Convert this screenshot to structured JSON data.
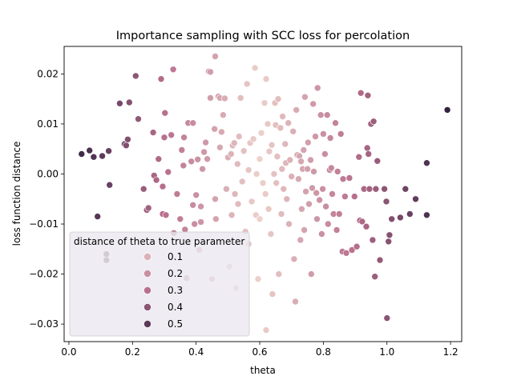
{
  "chart_data": {
    "type": "scatter",
    "title": "Importance sampling with SCC loss for percolation",
    "xlabel": "theta",
    "ylabel": "loss function distance",
    "xlim": [
      -0.015,
      1.235
    ],
    "ylim": [
      -0.0335,
      0.0255
    ],
    "xticks": [
      0.0,
      0.2,
      0.4,
      0.6,
      0.8,
      1.0,
      1.2
    ],
    "xtick_labels": [
      "0.0",
      "0.2",
      "0.4",
      "0.6",
      "0.8",
      "1.0",
      "1.2"
    ],
    "yticks": [
      0.02,
      0.01,
      0.0,
      -0.01,
      -0.02,
      -0.03
    ],
    "ytick_labels": [
      "0.02",
      "0.01",
      "0.00",
      "−0.01",
      "−0.02",
      "−0.03"
    ],
    "grid": false,
    "true_parameter": 0.6,
    "legend": {
      "title": "distance of theta to true parameter",
      "placement": "lower-left",
      "entries": [
        {
          "label": "0.1",
          "value": 0.1
        },
        {
          "label": "0.2",
          "value": 0.2
        },
        {
          "label": "0.3",
          "value": 0.3
        },
        {
          "label": "0.4",
          "value": 0.4
        },
        {
          "label": "0.5",
          "value": 0.5
        }
      ]
    },
    "colormap": {
      "low": "#ecd1cb",
      "mid": "#b86f8d",
      "high": "#2d1e3e",
      "domain": [
        0.0,
        0.6
      ]
    },
    "points": [
      [
        0.04,
        0.004
      ],
      [
        0.065,
        0.0047
      ],
      [
        0.078,
        0.0034
      ],
      [
        0.09,
        -0.0085
      ],
      [
        0.105,
        0.0036
      ],
      [
        0.118,
        -0.0172
      ],
      [
        0.118,
        -0.016
      ],
      [
        0.125,
        0.0046
      ],
      [
        0.128,
        -0.0022
      ],
      [
        0.16,
        0.0141
      ],
      [
        0.175,
        0.006
      ],
      [
        0.18,
        0.0057
      ],
      [
        0.185,
        0.0069
      ],
      [
        0.19,
        0.0143
      ],
      [
        0.21,
        0.0196
      ],
      [
        0.218,
        0.011
      ],
      [
        0.235,
        -0.003
      ],
      [
        0.245,
        -0.0072
      ],
      [
        0.25,
        -0.0068
      ],
      [
        0.265,
        0.0083
      ],
      [
        0.268,
        -0.0003
      ],
      [
        0.275,
        -0.0012
      ],
      [
        0.282,
        0.003
      ],
      [
        0.29,
        0.019
      ],
      [
        0.295,
        -0.0025
      ],
      [
        0.295,
        -0.008
      ],
      [
        0.3,
        0.0073
      ],
      [
        0.302,
        0.0122
      ],
      [
        0.305,
        -0.0082
      ],
      [
        0.312,
        0.0004
      ],
      [
        0.322,
        0.0078
      ],
      [
        0.328,
        0.0209
      ],
      [
        0.33,
        -0.0118
      ],
      [
        0.34,
        -0.004
      ],
      [
        0.35,
        -0.009
      ],
      [
        0.355,
        0.0048
      ],
      [
        0.36,
        0.0017
      ],
      [
        0.362,
        0.0073
      ],
      [
        0.365,
        -0.0111
      ],
      [
        0.37,
        -0.0208
      ],
      [
        0.375,
        0.0102
      ],
      [
        0.385,
        0.0025
      ],
      [
        0.39,
        0.0102
      ],
      [
        0.39,
        -0.0062
      ],
      [
        0.395,
        -0.01
      ],
      [
        0.4,
        -0.0042
      ],
      [
        0.405,
        0.0029
      ],
      [
        0.41,
        -0.0152
      ],
      [
        0.415,
        -0.0065
      ],
      [
        0.415,
        -0.0096
      ],
      [
        0.42,
        0.001
      ],
      [
        0.425,
        0.0044
      ],
      [
        0.43,
        0.0063
      ],
      [
        0.435,
        0.003
      ],
      [
        0.44,
        0.0205
      ],
      [
        0.445,
        0.0152
      ],
      [
        0.445,
        0.0204
      ],
      [
        0.45,
        -0.021
      ],
      [
        0.458,
        0.009
      ],
      [
        0.46,
        0.0235
      ],
      [
        0.46,
        -0.005
      ],
      [
        0.462,
        -0.009
      ],
      [
        0.47,
        0.0155
      ],
      [
        0.475,
        0.0053
      ],
      [
        0.475,
        0.0152
      ],
      [
        0.48,
        0.0084
      ],
      [
        0.485,
        0.0118
      ],
      [
        0.49,
        0.0151
      ],
      [
        0.495,
        -0.003
      ],
      [
        0.5,
        0.0033
      ],
      [
        0.505,
        -0.0185
      ],
      [
        0.51,
        0.004
      ],
      [
        0.512,
        -0.0082
      ],
      [
        0.515,
        0.0057
      ],
      [
        0.52,
        0.0062
      ],
      [
        0.522,
        -0.004
      ],
      [
        0.525,
        -0.0228
      ],
      [
        0.53,
        0.002
      ],
      [
        0.532,
        -0.006
      ],
      [
        0.535,
        0.0075
      ],
      [
        0.54,
        0.0152
      ],
      [
        0.545,
        -0.0015
      ],
      [
        0.55,
        0.0046
      ],
      [
        0.555,
        -0.0115
      ],
      [
        0.56,
        0.018
      ],
      [
        0.565,
        0.0008
      ],
      [
        0.565,
        -0.014
      ],
      [
        0.57,
        0.0062
      ],
      [
        0.575,
        -0.0055
      ],
      [
        0.58,
        0.007
      ],
      [
        0.585,
        0.0212
      ],
      [
        0.588,
        -0.0082
      ],
      [
        0.59,
        0.0
      ],
      [
        0.595,
        -0.021
      ],
      [
        0.6,
        0.003
      ],
      [
        0.6,
        -0.009
      ],
      [
        0.605,
        0.0082
      ],
      [
        0.61,
        -0.0018
      ],
      [
        0.615,
        0.0142
      ],
      [
        0.618,
        -0.004
      ],
      [
        0.62,
        0.019
      ],
      [
        0.62,
        -0.0312
      ],
      [
        0.625,
        0.01
      ],
      [
        0.628,
        -0.007
      ],
      [
        0.63,
        0.0045
      ],
      [
        0.635,
        -0.012
      ],
      [
        0.638,
        0.0058
      ],
      [
        0.64,
        -0.024
      ],
      [
        0.645,
        0.0
      ],
      [
        0.648,
        0.0142
      ],
      [
        0.65,
        0.0098
      ],
      [
        0.652,
        -0.0018
      ],
      [
        0.655,
        0.0035
      ],
      [
        0.658,
        0.015
      ],
      [
        0.66,
        -0.02
      ],
      [
        0.665,
        0.0092
      ],
      [
        0.668,
        -0.008
      ],
      [
        0.67,
        0.001
      ],
      [
        0.672,
        0.0115
      ],
      [
        0.675,
        -0.003
      ],
      [
        0.68,
        0.006
      ],
      [
        0.682,
        0.0022
      ],
      [
        0.685,
        -0.005
      ],
      [
        0.69,
        0.0102
      ],
      [
        0.692,
        -0.01
      ],
      [
        0.695,
        0.0028
      ],
      [
        0.7,
        -0.0005
      ],
      [
        0.705,
        0.0085
      ],
      [
        0.708,
        -0.017
      ],
      [
        0.712,
        -0.0255
      ],
      [
        0.715,
        0.0128
      ],
      [
        0.718,
        0.0038
      ],
      [
        0.722,
        -0.001
      ],
      [
        0.725,
        0.0036
      ],
      [
        0.728,
        -0.0132
      ],
      [
        0.73,
        0.0025
      ],
      [
        0.732,
        -0.007
      ],
      [
        0.735,
        0.001
      ],
      [
        0.738,
        0.0048
      ],
      [
        0.74,
        -0.0112
      ],
      [
        0.742,
        0.0154
      ],
      [
        0.745,
        -0.0035
      ],
      [
        0.75,
        0.001
      ],
      [
        0.752,
        0.0063
      ],
      [
        0.755,
        -0.006
      ],
      [
        0.76,
        0.0028
      ],
      [
        0.762,
        -0.02
      ],
      [
        0.765,
        -0.0028
      ],
      [
        0.768,
        0.014
      ],
      [
        0.77,
        0.0005
      ],
      [
        0.775,
        0.0075
      ],
      [
        0.778,
        -0.0038
      ],
      [
        0.78,
        -0.009
      ],
      [
        0.782,
        0.0172
      ],
      [
        0.788,
        -0.0052
      ],
      [
        0.792,
        0.0118
      ],
      [
        0.795,
        -0.012
      ],
      [
        0.798,
        -0.003
      ],
      [
        0.8,
        0.008
      ],
      [
        0.805,
        0.004
      ],
      [
        0.808,
        -0.0065
      ],
      [
        0.812,
        0.0118
      ],
      [
        0.815,
        -0.01
      ],
      [
        0.82,
        0.0008
      ],
      [
        0.822,
        0.0072
      ],
      [
        0.825,
        0.0012
      ],
      [
        0.828,
        -0.004
      ],
      [
        0.832,
        -0.008
      ],
      [
        0.838,
        0.0102
      ],
      [
        0.842,
        -0.0112
      ],
      [
        0.845,
        0.0005
      ],
      [
        0.85,
        -0.008
      ],
      [
        0.855,
        0.008
      ],
      [
        0.86,
        -0.0155
      ],
      [
        0.862,
        -0.001
      ],
      [
        0.868,
        -0.0045
      ],
      [
        0.872,
        -0.0158
      ],
      [
        0.882,
        -0.0008
      ],
      [
        0.89,
        -0.0152
      ],
      [
        0.898,
        -0.0045
      ],
      [
        0.905,
        -0.0145
      ],
      [
        0.912,
        0.0034
      ],
      [
        0.915,
        -0.0093
      ],
      [
        0.918,
        0.0162
      ],
      [
        0.922,
        -0.0095
      ],
      [
        0.928,
        -0.003
      ],
      [
        0.935,
        -0.0105
      ],
      [
        0.938,
        0.0052
      ],
      [
        0.94,
        0.0157
      ],
      [
        0.942,
        0.004
      ],
      [
        0.945,
        -0.003
      ],
      [
        0.95,
        0.01
      ],
      [
        0.955,
        -0.0132
      ],
      [
        0.958,
        0.0105
      ],
      [
        0.962,
        -0.0205
      ],
      [
        0.965,
        -0.003
      ],
      [
        0.97,
        0.0026
      ],
      [
        0.978,
        -0.0172
      ],
      [
        0.992,
        -0.003
      ],
      [
        0.998,
        -0.0055
      ],
      [
        1.0,
        -0.0288
      ],
      [
        1.005,
        -0.0135
      ],
      [
        1.008,
        -0.0122
      ],
      [
        1.015,
        -0.009
      ],
      [
        1.042,
        -0.0087
      ],
      [
        1.058,
        -0.003
      ],
      [
        1.072,
        -0.008
      ],
      [
        1.09,
        -0.005
      ],
      [
        1.125,
        -0.0082
      ],
      [
        1.125,
        0.0022
      ],
      [
        1.19,
        0.0128
      ]
    ]
  }
}
